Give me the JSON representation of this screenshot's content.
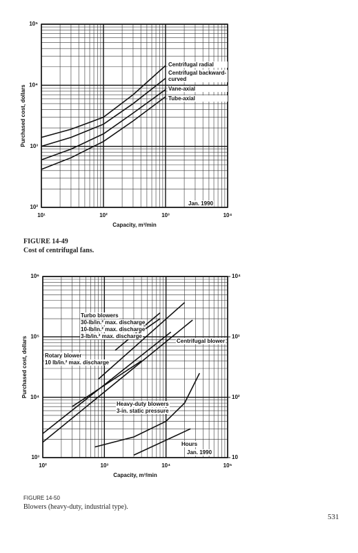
{
  "chart_data": [
    {
      "type": "line",
      "log_x": true,
      "log_y": true,
      "grid": true,
      "minor_grid": true,
      "color": "#111111",
      "y_label": "Purchased cost, dollars",
      "x_label": "Capacity, m³/min",
      "note": "Jan. 1990",
      "figure_label": "FIGURE 14-49",
      "caption": "Cost of centrifugal fans.",
      "xlim": [
        10,
        10000
      ],
      "xticks": [
        {
          "value": 10,
          "label": "10¹"
        },
        {
          "value": 100,
          "label": "10²"
        },
        {
          "value": 1000,
          "label": "10³"
        },
        {
          "value": 10000,
          "label": "10⁴"
        }
      ],
      "ylim": [
        100,
        100000
      ],
      "yticks": [
        {
          "value": 100,
          "label": "10²"
        },
        {
          "value": 1000,
          "label": "10³"
        },
        {
          "value": 10000,
          "label": "10⁴"
        },
        {
          "value": 100000,
          "label": "10⁵"
        }
      ],
      "series": [
        {
          "name": "Centrifugal radial",
          "x": [
            10,
            30,
            100,
            300,
            1000
          ],
          "values": [
            1400,
            1900,
            3000,
            7000,
            21000
          ]
        },
        {
          "name": "Centrifugal backward-curved",
          "x": [
            10,
            30,
            100,
            300,
            1000
          ],
          "values": [
            1000,
            1400,
            2300,
            5000,
            13000
          ]
        },
        {
          "name": "Vane-axial",
          "x": [
            10,
            30,
            100,
            300,
            1000
          ],
          "values": [
            600,
            900,
            1600,
            3500,
            8500
          ]
        },
        {
          "name": "Tube-axial",
          "x": [
            10,
            30,
            100,
            300,
            1000
          ],
          "values": [
            420,
            650,
            1200,
            2600,
            6500
          ]
        }
      ]
    },
    {
      "type": "line",
      "log_x": true,
      "log_y": true,
      "grid": true,
      "minor_grid": true,
      "color": "#111111",
      "y_label": "Purchased cost, dollars",
      "x_label": "Capacity, m³/min",
      "note": "Jan. 1990",
      "figure_label": "FIGURE 14-50",
      "caption": "Blowers (heavy-duty, industrial type).",
      "xlim": [
        100,
        100000
      ],
      "xticks": [
        {
          "value": 100,
          "label": "10²"
        },
        {
          "value": 1000,
          "label": "10³"
        },
        {
          "value": 10000,
          "label": "10⁴"
        },
        {
          "value": 100000,
          "label": "10⁵"
        }
      ],
      "ylim": [
        1000,
        1000000
      ],
      "yticks": [
        {
          "value": 1000,
          "label": "10³"
        },
        {
          "value": 10000,
          "label": "10⁴"
        },
        {
          "value": 100000,
          "label": "10⁵"
        },
        {
          "value": 1000000,
          "label": "10⁶"
        }
      ],
      "y2lim": [
        10,
        10000
      ],
      "y2ticks": [
        10,
        {
          "value": 100,
          "label": "10²"
        },
        {
          "value": 1000,
          "label": "10³"
        },
        {
          "value": 10000,
          "label": "10⁴"
        }
      ],
      "annotations": [
        "Turbo blowers",
        "30-lb/in.² max. discharge",
        "10-lb/in.² max. discharge",
        "3-lb/in.² max. discharge",
        "Centrifugal blower",
        "Rotary blower",
        "10 lb/in.² max. discharge",
        "Heavy-duty blowers",
        "3-in. static pressure",
        "Hours"
      ],
      "series": [
        {
          "x": [
            800,
            20000
          ],
          "values": [
            20000,
            370000
          ]
        },
        {
          "x": [
            1500,
            8000
          ],
          "values": [
            60000,
            250000
          ]
        },
        {
          "x": [
            3000,
            8000
          ],
          "values": [
            100000,
            200000
          ]
        },
        {
          "x": [
            100,
            27000
          ],
          "values": [
            1800,
            190000
          ]
        },
        {
          "x": [
            100,
            12000
          ],
          "values": [
            2500,
            120000
          ]
        },
        {
          "x": [
            300,
            4000
          ],
          "values": [
            7000,
            40000
          ]
        },
        {
          "x": [
            700,
            3000,
            10000,
            20000,
            35000
          ],
          "values": [
            1500,
            2200,
            4000,
            8000,
            25000
          ]
        },
        {
          "x": [
            3000,
            25000
          ],
          "values": [
            1100,
            3000
          ]
        }
      ]
    }
  ],
  "page_number": "531"
}
